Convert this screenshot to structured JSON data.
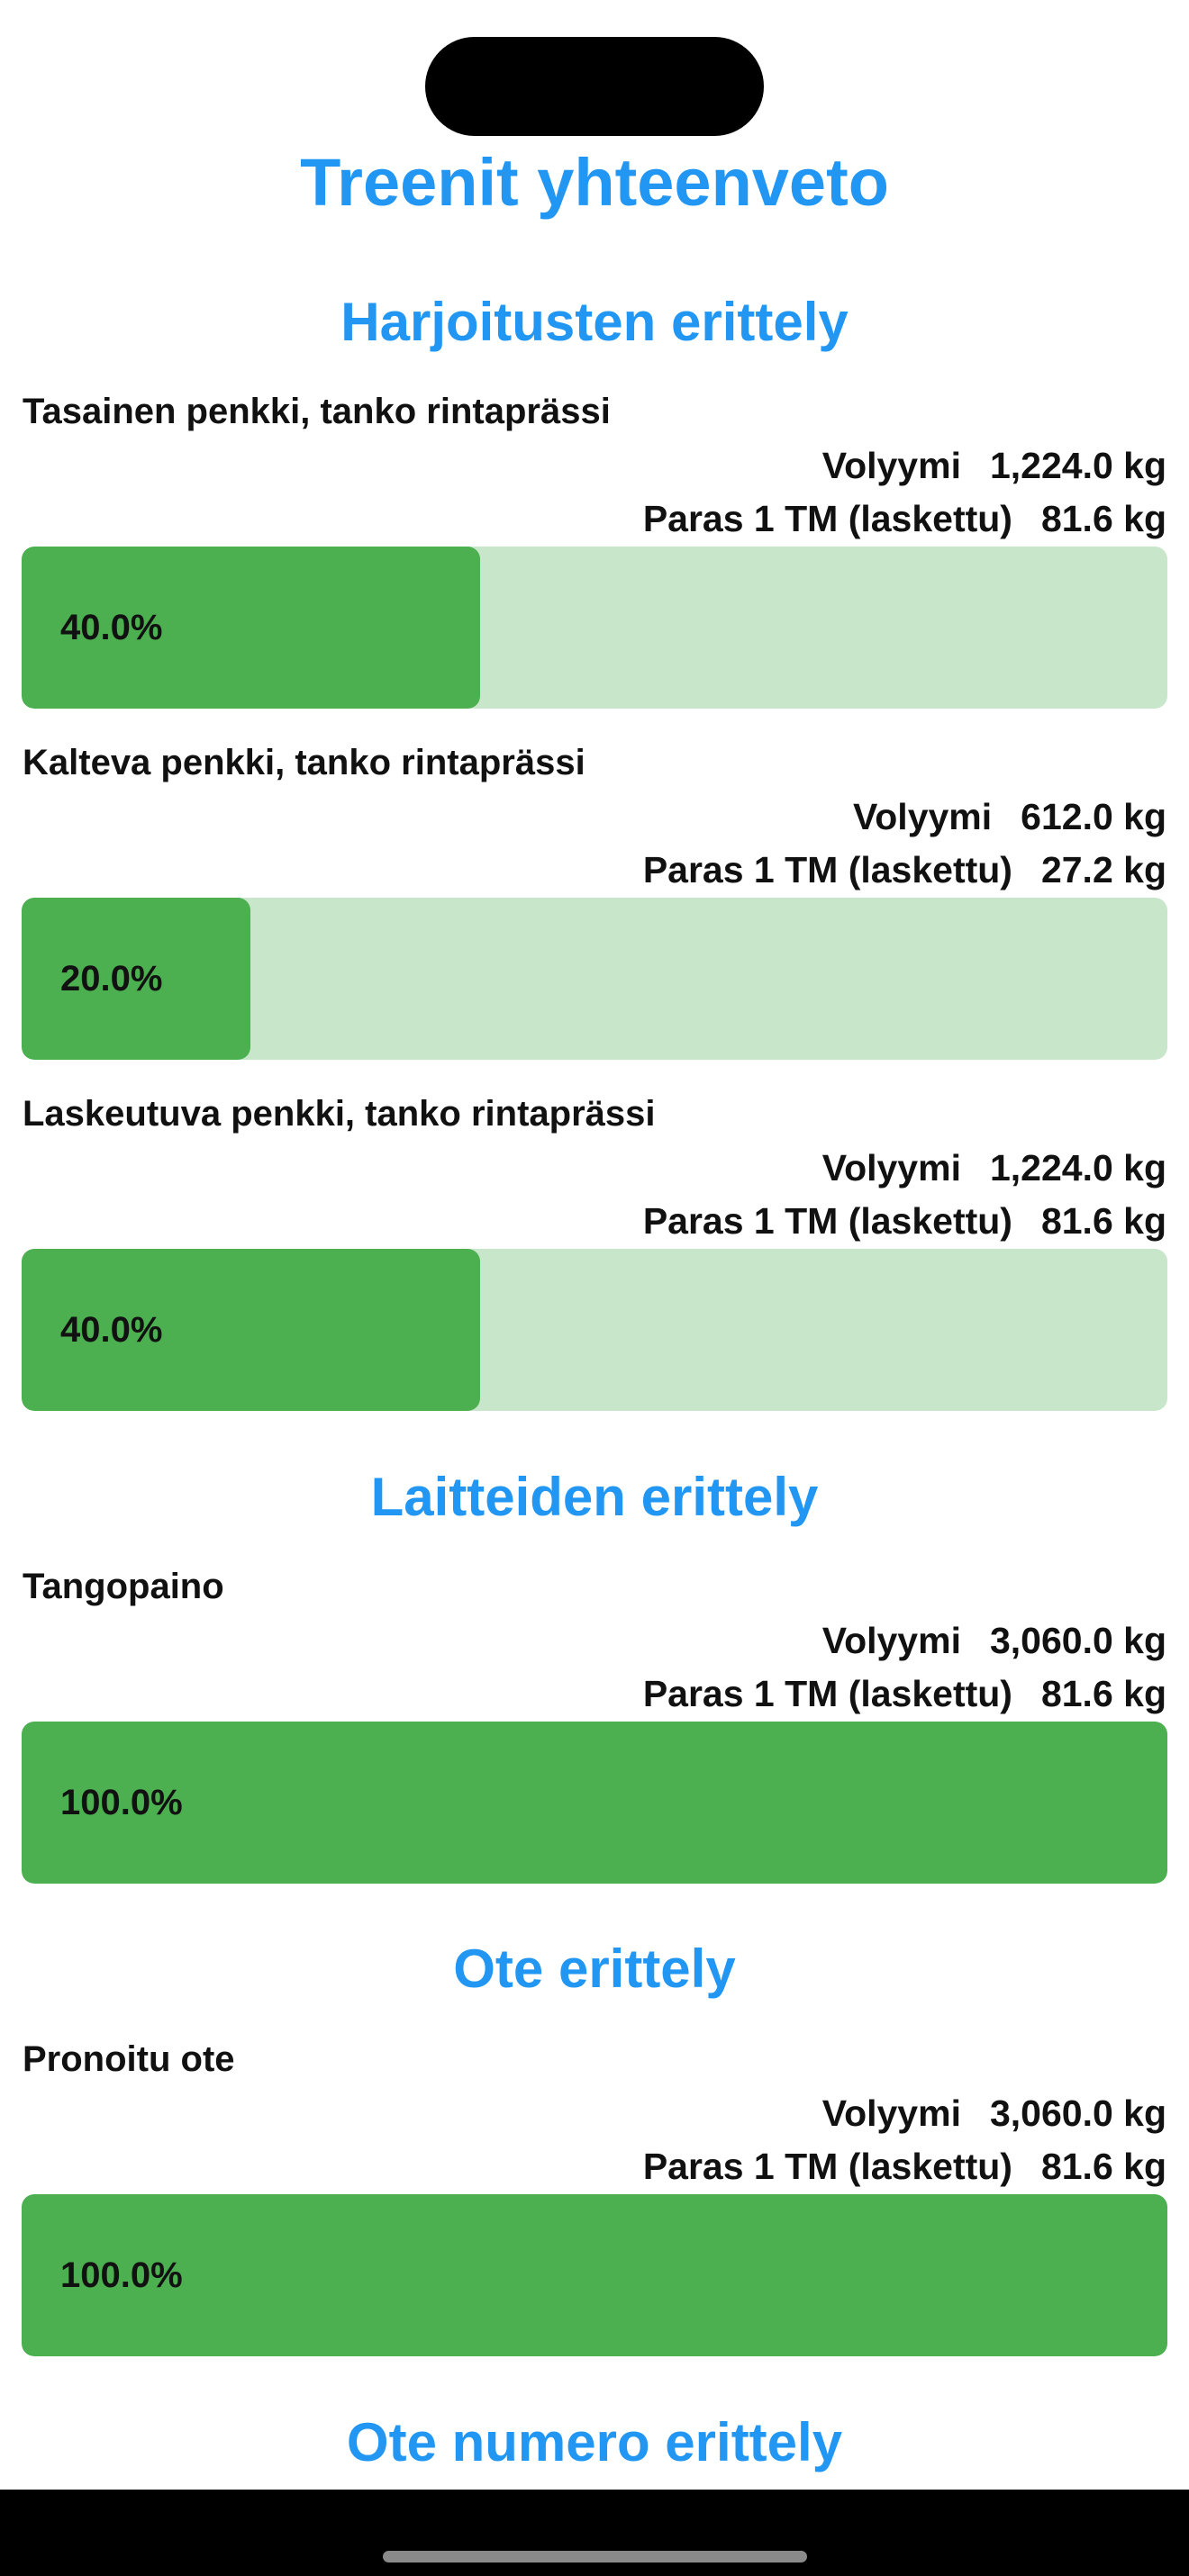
{
  "title": "Treenit yhteenveto",
  "colors": {
    "accent": "#2196f3",
    "bar_fill": "#4caf50",
    "bar_track": "#c8e6c9"
  },
  "sections": [
    {
      "title": "Harjoitusten erittely",
      "items": [
        {
          "name": "Tasainen penkki, tanko rintaprässi",
          "volume_label": "Volyymi",
          "volume_value": "1,224.0 kg",
          "best_label": "Paras 1 TM (laskettu)",
          "best_value": "81.6 kg",
          "percent_text": "40.0%",
          "percent": 40.0
        },
        {
          "name": "Kalteva penkki, tanko rintaprässi",
          "volume_label": "Volyymi",
          "volume_value": "612.0 kg",
          "best_label": "Paras 1 TM (laskettu)",
          "best_value": "27.2 kg",
          "percent_text": "20.0%",
          "percent": 20.0
        },
        {
          "name": "Laskeutuva penkki, tanko rintaprässi",
          "volume_label": "Volyymi",
          "volume_value": "1,224.0 kg",
          "best_label": "Paras 1 TM (laskettu)",
          "best_value": "81.6 kg",
          "percent_text": "40.0%",
          "percent": 40.0
        }
      ]
    },
    {
      "title": "Laitteiden erittely",
      "items": [
        {
          "name": "Tangopaino",
          "volume_label": "Volyymi",
          "volume_value": "3,060.0 kg",
          "best_label": "Paras 1 TM (laskettu)",
          "best_value": "81.6 kg",
          "percent_text": "100.0%",
          "percent": 100.0
        }
      ]
    },
    {
      "title": "Ote erittely",
      "items": [
        {
          "name": "Pronoitu ote",
          "volume_label": "Volyymi",
          "volume_value": "3,060.0 kg",
          "best_label": "Paras 1 TM (laskettu)",
          "best_value": "81.6 kg",
          "percent_text": "100.0%",
          "percent": 100.0
        }
      ]
    },
    {
      "title": "Ote numero erittely",
      "items": []
    }
  ]
}
